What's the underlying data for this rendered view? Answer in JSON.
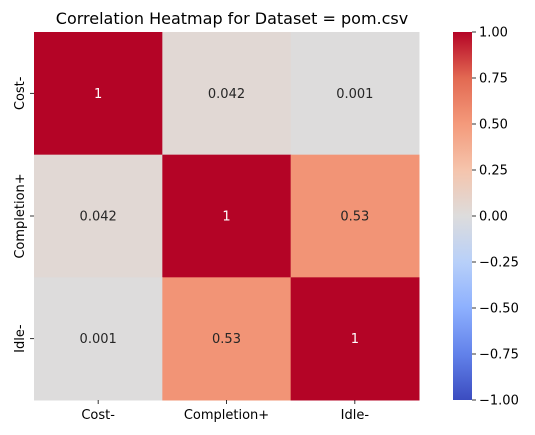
{
  "chart_data": {
    "type": "heatmap",
    "title": "Correlation Heatmap for Dataset = pom.csv",
    "x_labels": [
      "Cost-",
      "Completion+",
      "Idle-"
    ],
    "y_labels": [
      "Cost-",
      "Completion+",
      "Idle-"
    ],
    "values": [
      [
        1,
        0.042,
        0.001
      ],
      [
        0.042,
        1,
        0.53
      ],
      [
        0.001,
        0.53,
        1
      ]
    ],
    "annotations": [
      [
        "1",
        "0.042",
        "0.001"
      ],
      [
        "0.042",
        "1",
        "0.53"
      ],
      [
        "0.001",
        "0.53",
        "1"
      ]
    ],
    "colormap": "coolwarm",
    "vmin": -1,
    "vmax": 1,
    "colorbar_ticks": [
      "1.00",
      "0.75",
      "0.50",
      "0.25",
      "0.00",
      "−0.25",
      "−0.50",
      "−0.75",
      "−1.00"
    ],
    "colorbar_tick_values": [
      1,
      0.75,
      0.5,
      0.25,
      0,
      -0.25,
      -0.5,
      -0.75,
      -1
    ]
  }
}
